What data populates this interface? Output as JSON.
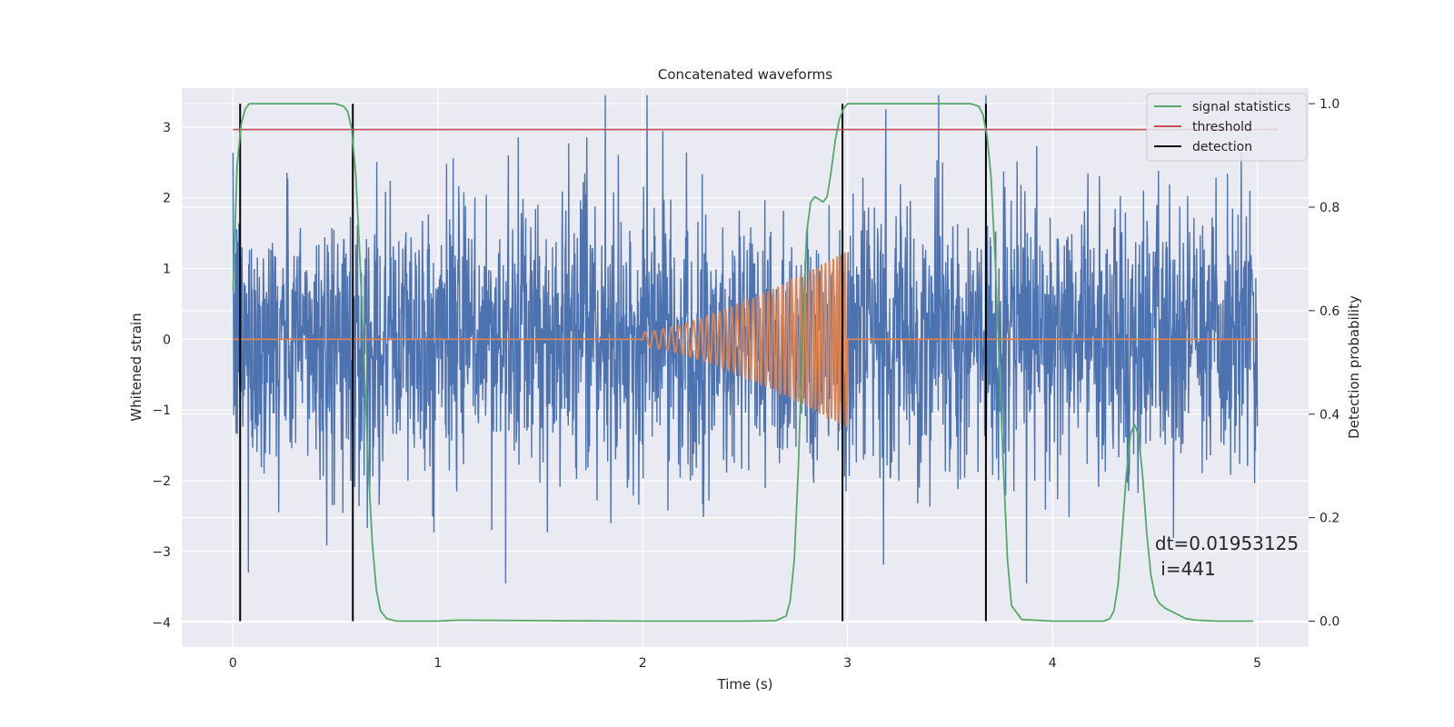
{
  "chart_data": {
    "type": "line",
    "title": "Concatenated waveforms",
    "xlabel": "Time (s)",
    "ylabel": "Whitened strain",
    "y2label": "Detection probability",
    "xlim": [
      -0.25,
      5.25
    ],
    "ylim": [
      -4.35,
      3.55
    ],
    "y2lim": [
      -0.05,
      1.03
    ],
    "xticks": [
      0,
      1,
      2,
      3,
      4,
      5
    ],
    "yticks": [
      -4,
      -3,
      -2,
      -1,
      0,
      1,
      2,
      3
    ],
    "y2ticks": [
      0.0,
      0.2,
      0.4,
      0.6,
      0.8,
      1.0
    ],
    "grid": true,
    "legend_position": "top-right",
    "colors": {
      "noise": "#4c72b0",
      "template": "#dd8452",
      "statistic": "#55a868",
      "threshold": "#c44e52",
      "detection": "#000000",
      "background": "#eaeaf2",
      "grid": "#ffffff"
    },
    "series": [
      {
        "name": "",
        "axis": "left",
        "kind": "noise",
        "x_range": [
          0,
          5
        ],
        "amplitude_envelope": [
          -3.45,
          3.45
        ]
      },
      {
        "name": "",
        "axis": "left",
        "kind": "chirp",
        "x_range": [
          2.0,
          3.0
        ],
        "amplitude_start": 0.1,
        "amplitude_end": 1.25,
        "cycles": 38
      },
      {
        "name": "signal statistics",
        "axis": "right",
        "x": [
          0.0,
          0.02,
          0.04,
          0.06,
          0.08,
          0.1,
          0.15,
          0.5,
          0.54,
          0.56,
          0.58,
          0.6,
          0.62,
          0.64,
          0.66,
          0.68,
          0.7,
          0.72,
          0.75,
          0.8,
          1.0,
          1.1,
          1.5,
          2.0,
          2.5,
          2.65,
          2.7,
          2.72,
          2.74,
          2.76,
          2.78,
          2.8,
          2.82,
          2.84,
          2.86,
          2.88,
          2.9,
          2.92,
          2.94,
          2.96,
          2.98,
          3.0,
          3.02,
          3.05,
          3.1,
          3.6,
          3.64,
          3.66,
          3.68,
          3.7,
          3.72,
          3.74,
          3.76,
          3.78,
          3.8,
          3.85,
          4.0,
          4.25,
          4.28,
          4.3,
          4.32,
          4.34,
          4.36,
          4.38,
          4.4,
          4.42,
          4.44,
          4.46,
          4.48,
          4.5,
          4.52,
          4.55,
          4.6,
          4.65,
          4.7,
          4.8,
          4.98
        ],
        "values": [
          0.64,
          0.88,
          0.96,
          0.99,
          1.0,
          1.0,
          1.0,
          1.0,
          0.995,
          0.985,
          0.95,
          0.86,
          0.7,
          0.5,
          0.3,
          0.15,
          0.06,
          0.02,
          0.005,
          0.0,
          0.0,
          0.002,
          0.001,
          0.0,
          0.0,
          0.001,
          0.01,
          0.04,
          0.12,
          0.3,
          0.55,
          0.75,
          0.81,
          0.82,
          0.815,
          0.81,
          0.82,
          0.87,
          0.93,
          0.97,
          0.99,
          1.0,
          1.0,
          1.0,
          1.0,
          1.0,
          0.995,
          0.98,
          0.94,
          0.86,
          0.7,
          0.5,
          0.3,
          0.12,
          0.03,
          0.003,
          0.0,
          0.0,
          0.005,
          0.02,
          0.07,
          0.17,
          0.28,
          0.36,
          0.38,
          0.36,
          0.28,
          0.17,
          0.09,
          0.05,
          0.035,
          0.025,
          0.015,
          0.005,
          0.002,
          0.0,
          0.0
        ]
      },
      {
        "name": "threshold",
        "axis": "right",
        "x": [
          0.0,
          5.1
        ],
        "values": [
          0.95,
          0.95
        ]
      },
      {
        "name": "detection",
        "axis": "right",
        "vlines": [
          0.035,
          0.585,
          2.975,
          3.675
        ],
        "range": [
          0.0,
          1.0
        ]
      }
    ],
    "annotation": {
      "line1": "dt=0.01953125",
      "line2": " i=441",
      "x": 4.5,
      "y": 0.12
    }
  }
}
